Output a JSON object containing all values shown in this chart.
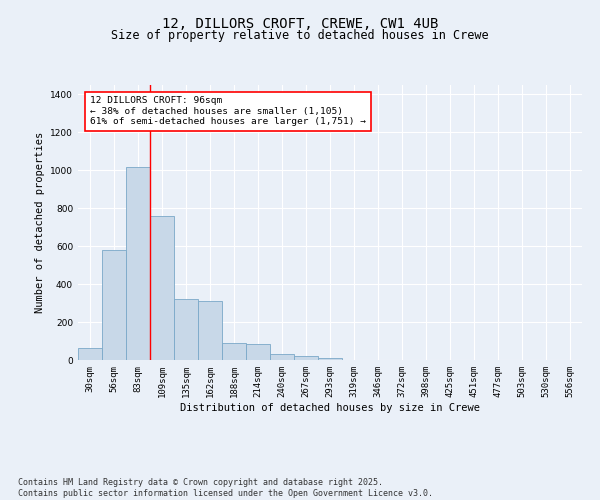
{
  "title_line1": "12, DILLORS CROFT, CREWE, CW1 4UB",
  "title_line2": "Size of property relative to detached houses in Crewe",
  "xlabel": "Distribution of detached houses by size in Crewe",
  "ylabel": "Number of detached properties",
  "categories": [
    "30sqm",
    "56sqm",
    "83sqm",
    "109sqm",
    "135sqm",
    "162sqm",
    "188sqm",
    "214sqm",
    "240sqm",
    "267sqm",
    "293sqm",
    "319sqm",
    "346sqm",
    "372sqm",
    "398sqm",
    "425sqm",
    "451sqm",
    "477sqm",
    "503sqm",
    "530sqm",
    "556sqm"
  ],
  "values": [
    65,
    580,
    1020,
    760,
    320,
    310,
    90,
    85,
    30,
    20,
    10,
    0,
    0,
    0,
    0,
    0,
    0,
    0,
    0,
    0,
    0
  ],
  "bar_color": "#c8d8e8",
  "bar_edge_color": "#7aa8c8",
  "vline_x": 2.5,
  "vline_color": "red",
  "annotation_text": "12 DILLORS CROFT: 96sqm\n← 38% of detached houses are smaller (1,105)\n61% of semi-detached houses are larger (1,751) →",
  "annotation_box_color": "white",
  "annotation_box_edge": "red",
  "ylim": [
    0,
    1450
  ],
  "background_color": "#eaf0f8",
  "plot_bg_color": "#eaf0f8",
  "grid_color": "white",
  "footnote": "Contains HM Land Registry data © Crown copyright and database right 2025.\nContains public sector information licensed under the Open Government Licence v3.0."
}
